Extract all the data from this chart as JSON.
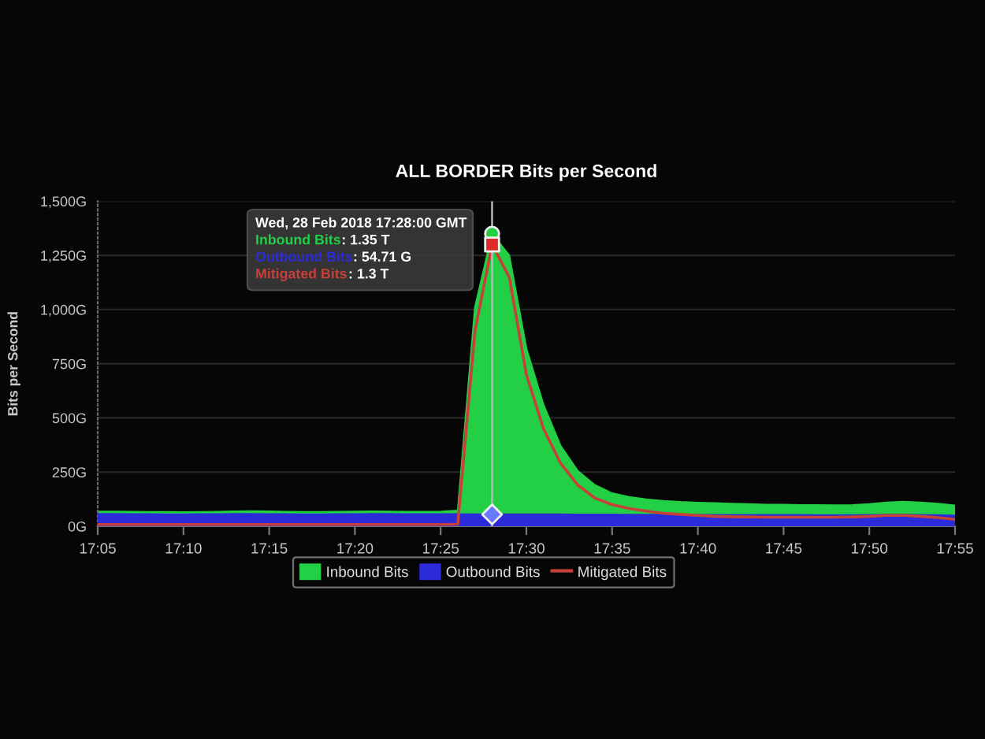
{
  "chart_data": {
    "type": "area",
    "title": "ALL BORDER Bits per Second",
    "ylabel": "Bits per Second",
    "x": [
      "2018-02-28T17:05",
      "2018-02-28T17:06",
      "2018-02-28T17:07",
      "2018-02-28T17:08",
      "2018-02-28T17:09",
      "2018-02-28T17:10",
      "2018-02-28T17:11",
      "2018-02-28T17:12",
      "2018-02-28T17:13",
      "2018-02-28T17:14",
      "2018-02-28T17:15",
      "2018-02-28T17:16",
      "2018-02-28T17:17",
      "2018-02-28T17:18",
      "2018-02-28T17:19",
      "2018-02-28T17:20",
      "2018-02-28T17:21",
      "2018-02-28T17:22",
      "2018-02-28T17:23",
      "2018-02-28T17:24",
      "2018-02-28T17:25",
      "2018-02-28T17:26",
      "2018-02-28T17:27",
      "2018-02-28T17:28",
      "2018-02-28T17:29",
      "2018-02-28T17:30",
      "2018-02-28T17:31",
      "2018-02-28T17:32",
      "2018-02-28T17:33",
      "2018-02-28T17:34",
      "2018-02-28T17:35",
      "2018-02-28T17:36",
      "2018-02-28T17:37",
      "2018-02-28T17:38",
      "2018-02-28T17:39",
      "2018-02-28T17:40",
      "2018-02-28T17:41",
      "2018-02-28T17:42",
      "2018-02-28T17:43",
      "2018-02-28T17:44",
      "2018-02-28T17:45",
      "2018-02-28T17:46",
      "2018-02-28T17:47",
      "2018-02-28T17:48",
      "2018-02-28T17:49",
      "2018-02-28T17:50",
      "2018-02-28T17:51",
      "2018-02-28T17:52",
      "2018-02-28T17:53",
      "2018-02-28T17:54",
      "2018-02-28T17:55"
    ],
    "series": [
      {
        "name": "Inbound Bits",
        "color": "#22cf45",
        "values": [
          68,
          68,
          67,
          66,
          66,
          65,
          66,
          67,
          69,
          70,
          69,
          67,
          66,
          66,
          67,
          68,
          69,
          68,
          67,
          67,
          68,
          72,
          1010,
          1350,
          1250,
          820,
          560,
          370,
          255,
          190,
          152,
          135,
          124,
          117,
          112,
          109,
          107,
          104,
          102,
          100,
          100,
          98,
          98,
          97,
          98,
          102,
          110,
          113,
          110,
          104,
          96
        ]
      },
      {
        "name": "Outbound Bits",
        "color": "#2b2bd9",
        "values": [
          57,
          57,
          56,
          56,
          55,
          55,
          56,
          56,
          57,
          57,
          56,
          56,
          55,
          55,
          56,
          56,
          57,
          57,
          56,
          56,
          56,
          56,
          55,
          54.71,
          55,
          55,
          55,
          55,
          54,
          54,
          54,
          53,
          53,
          53,
          52,
          52,
          52,
          52,
          52,
          52,
          52,
          52,
          51,
          51,
          51,
          52,
          53,
          53,
          52,
          51,
          50
        ]
      },
      {
        "name": "Mitigated Bits",
        "type": "line",
        "color": "#c8403a",
        "values": [
          8,
          8,
          8,
          8,
          8,
          8,
          8,
          8,
          8,
          8,
          8,
          8,
          8,
          8,
          8,
          8,
          8,
          8,
          8,
          8,
          8,
          10,
          900,
          1300,
          1150,
          700,
          450,
          290,
          190,
          130,
          100,
          82,
          70,
          60,
          55,
          50,
          46,
          44,
          43,
          42,
          42,
          42,
          42,
          42,
          43,
          46,
          50,
          50,
          46,
          40,
          32
        ]
      },
      {
        "type": "scatter",
        "marker": "circle",
        "color": "#22cf45",
        "x": [
          "2018-02-28T17:28"
        ],
        "values": [
          1350
        ]
      },
      {
        "type": "scatter",
        "marker": "diamond",
        "color": "#6a78ff",
        "x": [
          "2018-02-28T17:28"
        ],
        "values": [
          54.71
        ]
      },
      {
        "type": "scatter",
        "marker": "square",
        "color": "#e02a2a",
        "x": [
          "2018-02-28T17:28"
        ],
        "values": [
          1300
        ]
      }
    ],
    "xlim": [
      "2018-02-28T17:05",
      "2018-02-28T17:55"
    ],
    "xticks": [
      {
        "value": "2018-02-28T17:05",
        "label": "17:05"
      },
      {
        "value": "2018-02-28T17:10",
        "label": "17:10"
      },
      {
        "value": "2018-02-28T17:15",
        "label": "17:15"
      },
      {
        "value": "2018-02-28T17:20",
        "label": "17:20"
      },
      {
        "value": "2018-02-28T17:25",
        "label": "17:25"
      },
      {
        "value": "2018-02-28T17:30",
        "label": "17:30"
      },
      {
        "value": "2018-02-28T17:35",
        "label": "17:35"
      },
      {
        "value": "2018-02-28T17:40",
        "label": "17:40"
      },
      {
        "value": "2018-02-28T17:45",
        "label": "17:45"
      },
      {
        "value": "2018-02-28T17:50",
        "label": "17:50"
      },
      {
        "value": "2018-02-28T17:55",
        "label": "17:55"
      }
    ],
    "ylim": [
      0,
      1500
    ],
    "yticks": [
      {
        "value": 0,
        "label": "0G"
      },
      {
        "value": 250,
        "label": "250G"
      },
      {
        "value": 500,
        "label": "500G"
      },
      {
        "value": 750,
        "label": "750G"
      },
      {
        "value": 1000,
        "label": "1,000G"
      },
      {
        "value": 1250,
        "label": "1,250G"
      },
      {
        "value": 1500,
        "label": "1,500G"
      }
    ],
    "grid": "y",
    "legend": "bottom",
    "ref_lines": [
      {
        "axis": "x",
        "value": "2018-02-28T17:28",
        "color": "#b8b8b8"
      }
    ],
    "annotations": [
      "Wed, 28 Feb 2018 17:28:00 GMT",
      "Inbound Bits: 1.35 T",
      "Outbound Bits: 54.71 G",
      "Mitigated Bits: 1.3 T"
    ]
  }
}
